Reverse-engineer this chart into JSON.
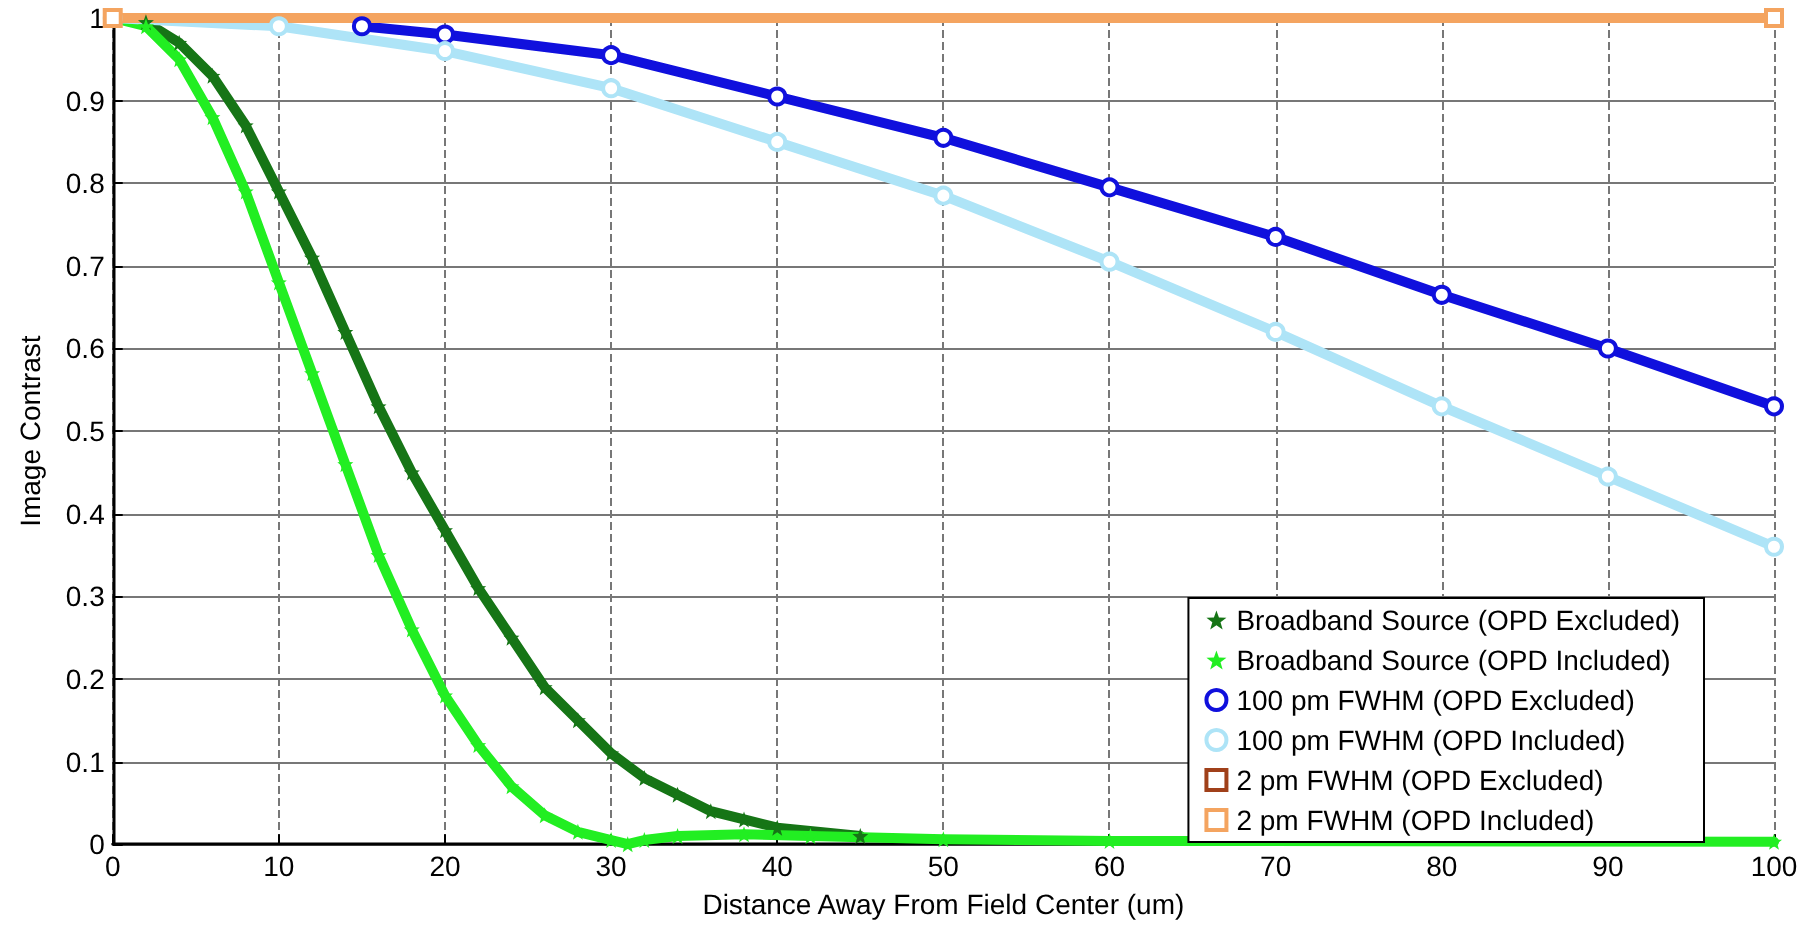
{
  "chart_data": {
    "type": "line",
    "xlabel": "Distance Away From Field Center (um)",
    "ylabel": "Image Contrast",
    "xlim": [
      0,
      100
    ],
    "ylim": [
      0,
      1
    ],
    "xticks": [
      0,
      10,
      20,
      30,
      40,
      50,
      60,
      70,
      80,
      90,
      100
    ],
    "yticks": [
      0,
      0.1,
      0.2,
      0.3,
      0.4,
      0.5,
      0.6,
      0.7,
      0.8,
      0.9,
      1
    ],
    "grid": true,
    "legend": "bottom right",
    "series": [
      {
        "name": "Broadband Source (OPD Excluded)",
        "color": "#167516",
        "marker": "star",
        "x": [
          0,
          2,
          4,
          6,
          8,
          10,
          12,
          14,
          16,
          18,
          20,
          22,
          24,
          26,
          28,
          30,
          32,
          34,
          36,
          38,
          40,
          45
        ],
        "values": [
          1,
          0.995,
          0.97,
          0.93,
          0.87,
          0.79,
          0.71,
          0.62,
          0.53,
          0.45,
          0.38,
          0.31,
          0.25,
          0.19,
          0.15,
          0.11,
          0.08,
          0.06,
          0.04,
          0.03,
          0.02,
          0.01
        ]
      },
      {
        "name": "Broadband Source (OPD Included)",
        "color": "#22ee22",
        "marker": "star",
        "x": [
          0,
          2,
          4,
          6,
          8,
          10,
          12,
          14,
          16,
          18,
          20,
          22,
          24,
          26,
          28,
          30,
          31,
          32,
          34,
          38,
          42,
          50,
          60,
          100
        ],
        "values": [
          1,
          0.99,
          0.95,
          0.88,
          0.79,
          0.68,
          0.57,
          0.46,
          0.35,
          0.26,
          0.18,
          0.12,
          0.07,
          0.035,
          0.015,
          0.005,
          0,
          0.005,
          0.01,
          0.012,
          0.01,
          0.006,
          0.004,
          0.003
        ]
      },
      {
        "name": "100 pm FWHM (OPD Excluded)",
        "color": "#1010dd",
        "marker": "circle",
        "x": [
          15,
          20,
          30,
          40,
          50,
          60,
          70,
          80,
          90,
          100
        ],
        "values": [
          0.99,
          0.98,
          0.955,
          0.905,
          0.855,
          0.795,
          0.735,
          0.665,
          0.6,
          0.53
        ]
      },
      {
        "name": "100 pm FWHM (OPD Included)",
        "color": "#aee4f7",
        "marker": "circle",
        "x": [
          0,
          10,
          20,
          30,
          40,
          50,
          60,
          70,
          80,
          90,
          100
        ],
        "values": [
          1,
          0.99,
          0.96,
          0.915,
          0.85,
          0.785,
          0.705,
          0.62,
          0.53,
          0.445,
          0.36
        ]
      },
      {
        "name": "2 pm FWHM (OPD Excluded)",
        "color": "#a0401a",
        "marker": "square"
      },
      {
        "name": "2 pm FWHM (OPD Included)",
        "color": "#f4a460",
        "marker": "square",
        "x": [
          0,
          100
        ],
        "values": [
          1,
          1
        ]
      }
    ]
  }
}
